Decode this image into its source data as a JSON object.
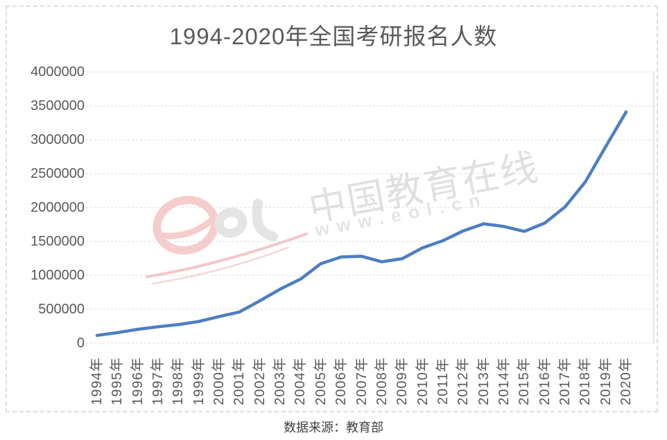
{
  "page": {
    "background": "#ffffff"
  },
  "source_note": "数据来源：教育部",
  "watermark": {
    "brand_text": "中国教育在线",
    "url_text": "www.eol.cn",
    "logo_text": "eol",
    "pink_color": "#f3c7c7",
    "gray_color": "#e4e4e4"
  },
  "chart_data": {
    "type": "line",
    "title": "1994-2020年全国考研报名人数",
    "categories": [
      "1994年",
      "1995年",
      "1996年",
      "1997年",
      "1998年",
      "1999年",
      "2000年",
      "2001年",
      "2002年",
      "2003年",
      "2004年",
      "2005年",
      "2006年",
      "2007年",
      "2008年",
      "2009年",
      "2010年",
      "2011年",
      "2012年",
      "2013年",
      "2014年",
      "2015年",
      "2016年",
      "2017年",
      "2018年",
      "2019年",
      "2020年"
    ],
    "series": [
      {
        "name": "考研报名人数",
        "values": [
          114000,
          155000,
          204000,
          242000,
          274000,
          319000,
          392000,
          460000,
          624000,
          797000,
          945000,
          1172000,
          1271200,
          1282000,
          1200000,
          1246000,
          1406000,
          1511000,
          1656000,
          1760000,
          1720000,
          1649000,
          1770000,
          2010000,
          2380000,
          2900000,
          3410000
        ]
      }
    ],
    "xlabel": "",
    "ylabel": "",
    "ylim": [
      0,
      4000000
    ],
    "ytick_step": 500000,
    "ytick_labels": [
      "0",
      "500000",
      "1000000",
      "1500000",
      "2000000",
      "2500000",
      "3000000",
      "3500000",
      "4000000"
    ],
    "grid": true,
    "gridline_color": "#dbdbdb",
    "line_color": "#4d7ec3",
    "axis_text_color": "#595959",
    "legend_position": "none"
  }
}
